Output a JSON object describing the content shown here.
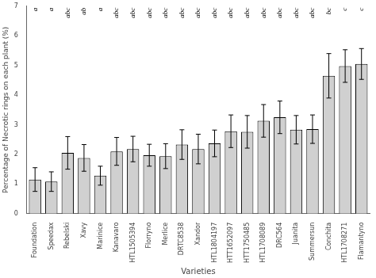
{
  "chart_data": {
    "type": "bar",
    "xlabel": "Varieties",
    "ylabel": "Percentage of Necrotic rings on each plant (%)",
    "categories": [
      "Foundation",
      "Speedax",
      "Rebelski",
      "Xavy",
      "Marinice",
      "Kanavaro",
      "HTL1505394",
      "Florryno",
      "Merlice",
      "DRTC8538",
      "Xandor",
      "HTL1804197",
      "HTT1652097",
      "HTT1750485",
      "HTL1708089",
      "DRC564",
      "Juanita",
      "Summersun",
      "Conchita",
      "HTL1708271",
      "Flamantyno"
    ],
    "values": [
      1.15,
      1.08,
      2.05,
      1.88,
      1.28,
      2.1,
      2.18,
      1.97,
      1.94,
      2.33,
      2.18,
      2.37,
      2.78,
      2.76,
      3.13,
      3.25,
      2.83,
      2.85,
      4.65,
      4.98,
      5.05
    ],
    "errors": [
      0.4,
      0.33,
      0.55,
      0.45,
      0.32,
      0.47,
      0.43,
      0.37,
      0.42,
      0.5,
      0.5,
      0.45,
      0.55,
      0.55,
      0.55,
      0.55,
      0.48,
      0.48,
      0.75,
      0.55,
      0.52
    ],
    "letters": [
      "a",
      "a",
      "abc",
      "ab",
      "a",
      "abc",
      "abc",
      "abc",
      "abc",
      "abc",
      "abc",
      "abc",
      "abc",
      "abc",
      "abc",
      "abc",
      "abc",
      "abc",
      "bc",
      "c",
      "c"
    ],
    "color": "#d0d0d0",
    "ylim": [
      0,
      7
    ],
    "yticks": [
      0,
      1,
      2,
      3,
      4,
      5,
      6,
      7
    ],
    "grid": false
  }
}
